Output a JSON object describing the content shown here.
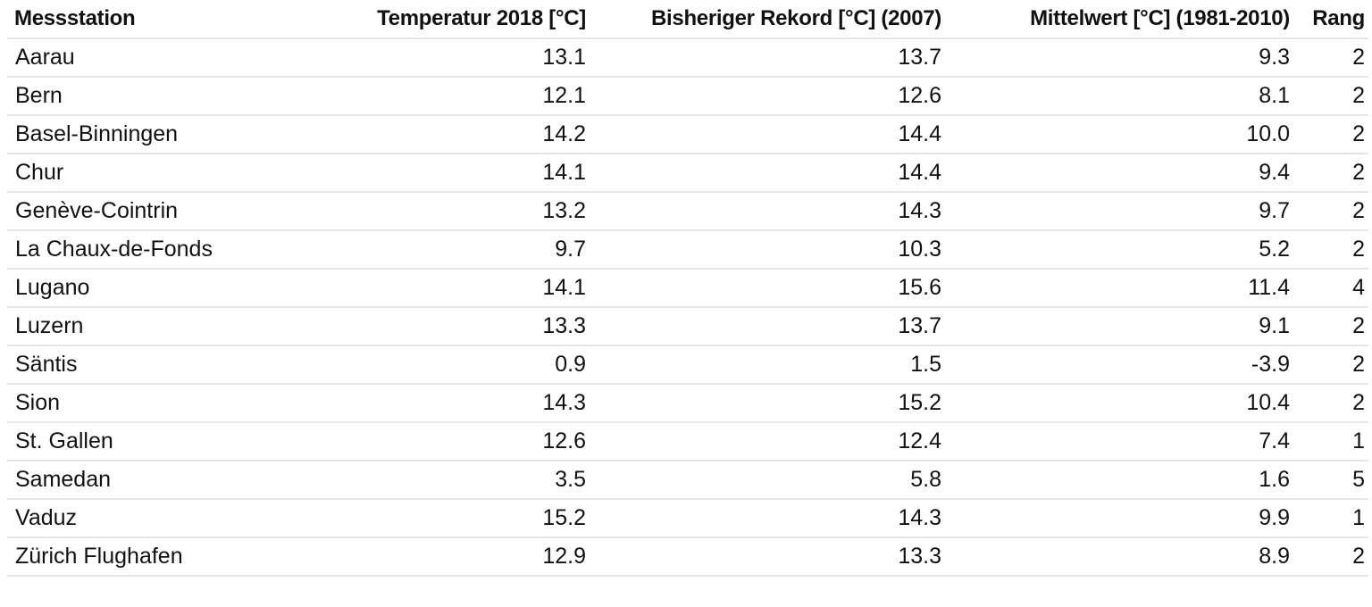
{
  "table": {
    "headers": [
      "Messstation",
      "Temperatur 2018 [°C]",
      "Bisheriger Rekord [°C] (2007)",
      "Mittelwert [°C] (1981-2010)",
      "Rang"
    ],
    "rows": [
      [
        "Aarau",
        "13.1",
        "13.7",
        "9.3",
        "2"
      ],
      [
        "Bern",
        "12.1",
        "12.6",
        "8.1",
        "2"
      ],
      [
        "Basel-Binningen",
        "14.2",
        "14.4",
        "10.0",
        "2"
      ],
      [
        "Chur",
        "14.1",
        "14.4",
        "9.4",
        "2"
      ],
      [
        "Genève-Cointrin",
        "13.2",
        "14.3",
        "9.7",
        "2"
      ],
      [
        "La Chaux-de-Fonds",
        "9.7",
        "10.3",
        "5.2",
        "2"
      ],
      [
        "Lugano",
        "14.1",
        "15.6",
        "11.4",
        "4"
      ],
      [
        "Luzern",
        "13.3",
        "13.7",
        "9.1",
        "2"
      ],
      [
        "Säntis",
        "0.9",
        "1.5",
        "-3.9",
        "2"
      ],
      [
        "Sion",
        "14.3",
        "15.2",
        "10.4",
        "2"
      ],
      [
        "St. Gallen",
        "12.6",
        "12.4",
        "7.4",
        "1"
      ],
      [
        "Samedan",
        "3.5",
        "5.8",
        "1.6",
        "5"
      ],
      [
        "Vaduz",
        "15.2",
        "14.3",
        "9.9",
        "1"
      ],
      [
        "Zürich Flughafen",
        "12.9",
        "13.3",
        "8.9",
        "2"
      ]
    ]
  }
}
